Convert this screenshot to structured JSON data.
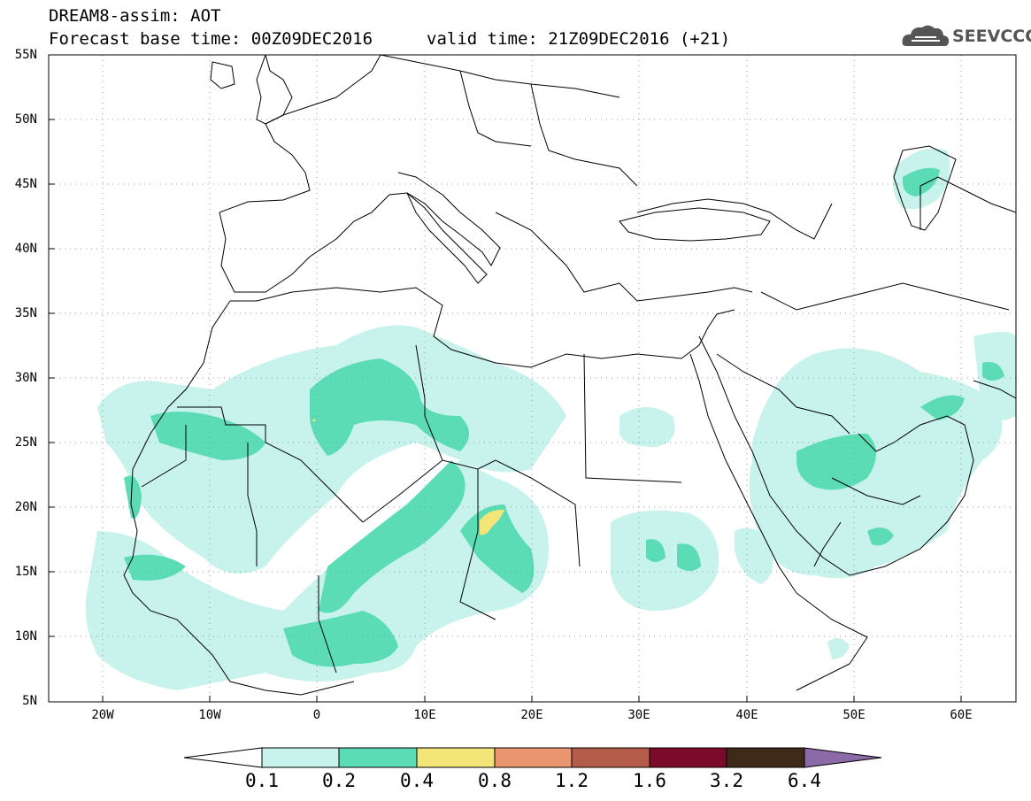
{
  "header": {
    "title_line1": "DREAM8-assim: AOT",
    "title_line2": "Forecast base time: 00Z09DEC2016",
    "valid_time": "valid time: 21Z09DEC2016 (+21)",
    "logo_text": "SEEVCCC"
  },
  "map": {
    "lat_labels": [
      "55N",
      "50N",
      "45N",
      "40N",
      "35N",
      "30N",
      "25N",
      "20N",
      "15N",
      "10N",
      "5N"
    ],
    "lon_labels": [
      "20W",
      "10W",
      "0",
      "10E",
      "20E",
      "30E",
      "40E",
      "50E",
      "60E"
    ],
    "extent": {
      "lon_min": -25,
      "lon_max": 65,
      "lat_min": 5,
      "lat_max": 55
    },
    "grid": "dotted",
    "variable": "AOT"
  },
  "colorbar": {
    "levels": [
      "0.1",
      "0.2",
      "0.4",
      "0.8",
      "1.2",
      "1.6",
      "3.2",
      "6.4"
    ],
    "colors": [
      "#ffffff",
      "#c8f2ec",
      "#5bdcb4",
      "#f3e577",
      "#e99570",
      "#b45c4a",
      "#7c0a2a",
      "#3f2a18",
      "#8c6aa8"
    ]
  },
  "colors": {
    "aot_0_1": "#c8f2ec",
    "aot_0_2": "#5bdcb4",
    "aot_0_4": "#f3e577",
    "border": "#000000",
    "grid": "#9a9a9a"
  }
}
